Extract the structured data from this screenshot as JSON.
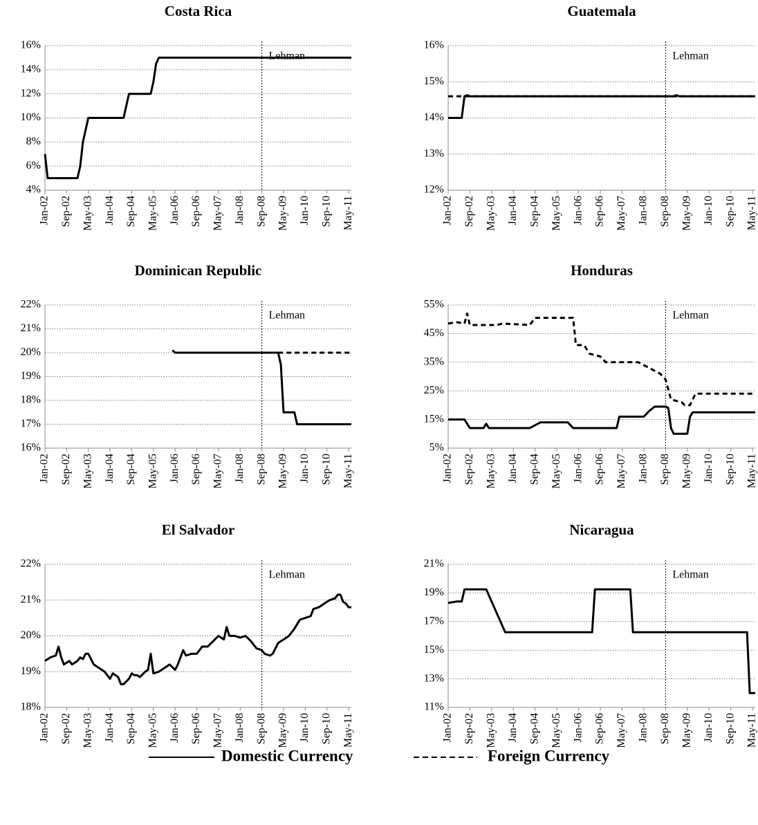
{
  "chart_data": [
    {
      "type": "line",
      "title": "Costa Rica",
      "xlim": [
        0,
        113
      ],
      "xticks": [
        {
          "value": 0,
          "label": "Jan-02"
        },
        {
          "value": 8,
          "label": "Sep-02"
        },
        {
          "value": 16,
          "label": "May-03"
        },
        {
          "value": 24,
          "label": "Jan-04"
        },
        {
          "value": 32,
          "label": "Sep-04"
        },
        {
          "value": 40,
          "label": "May-05"
        },
        {
          "value": 48,
          "label": "Jan-06"
        },
        {
          "value": 56,
          "label": "Sep-06"
        },
        {
          "value": 64,
          "label": "May-07"
        },
        {
          "value": 72,
          "label": "Jan-08"
        },
        {
          "value": 80,
          "label": "Sep-08"
        },
        {
          "value": 88,
          "label": "May-09"
        },
        {
          "value": 96,
          "label": "Jan-10"
        },
        {
          "value": 104,
          "label": "Sep-10"
        },
        {
          "value": 112,
          "label": "May-11"
        }
      ],
      "ylim": [
        4,
        16
      ],
      "yticks": [
        {
          "value": 4,
          "label": "4%"
        },
        {
          "value": 6,
          "label": "6%"
        },
        {
          "value": 8,
          "label": "8%"
        },
        {
          "value": 10,
          "label": "10%"
        },
        {
          "value": 12,
          "label": "12%"
        },
        {
          "value": 14,
          "label": "14%"
        },
        {
          "value": 16,
          "label": "16%"
        }
      ],
      "grid": true,
      "annotation": {
        "x": 80,
        "text": "Lehman"
      },
      "series": [
        {
          "name": "Domestic Currency",
          "style": "solid",
          "color": "#000000",
          "x": [
            0,
            1,
            12,
            13,
            14,
            15,
            16,
            29,
            30,
            31,
            39,
            40,
            41,
            42,
            113
          ],
          "values": [
            7,
            5,
            5,
            6,
            8,
            9,
            10,
            10,
            11,
            12,
            12,
            13,
            14.5,
            15,
            15
          ]
        }
      ]
    },
    {
      "type": "line",
      "title": "Guatemala",
      "xlim": [
        0,
        113
      ],
      "xticks": [
        {
          "value": 0,
          "label": "Jan-02"
        },
        {
          "value": 8,
          "label": "Sep-02"
        },
        {
          "value": 16,
          "label": "May-03"
        },
        {
          "value": 24,
          "label": "Jan-04"
        },
        {
          "value": 32,
          "label": "Sep-04"
        },
        {
          "value": 40,
          "label": "May-05"
        },
        {
          "value": 48,
          "label": "Jan-06"
        },
        {
          "value": 56,
          "label": "Sep-06"
        },
        {
          "value": 64,
          "label": "May-07"
        },
        {
          "value": 72,
          "label": "Jan-08"
        },
        {
          "value": 80,
          "label": "Sep-08"
        },
        {
          "value": 88,
          "label": "May-09"
        },
        {
          "value": 96,
          "label": "Jan-10"
        },
        {
          "value": 104,
          "label": "Sep-10"
        },
        {
          "value": 112,
          "label": "May-11"
        }
      ],
      "ylim": [
        12,
        16
      ],
      "yticks": [
        {
          "value": 12,
          "label": "12%"
        },
        {
          "value": 13,
          "label": "13%"
        },
        {
          "value": 14,
          "label": "14%"
        },
        {
          "value": 15,
          "label": "15%"
        },
        {
          "value": 16,
          "label": "16%"
        }
      ],
      "grid": true,
      "annotation": {
        "x": 80,
        "text": "Lehman"
      },
      "series": [
        {
          "name": "Domestic Currency",
          "style": "solid",
          "color": "#000000",
          "x": [
            0,
            5,
            6,
            7,
            8,
            83,
            84,
            85,
            113
          ],
          "values": [
            14,
            14,
            14.6,
            14.63,
            14.6,
            14.6,
            14.63,
            14.6,
            14.6
          ]
        },
        {
          "name": "Foreign Currency",
          "style": "dashed",
          "color": "#000000",
          "x": [
            0,
            113
          ],
          "values": [
            14.6,
            14.6
          ]
        }
      ]
    },
    {
      "type": "line",
      "title": "Dominican Republic",
      "xlim": [
        0,
        113
      ],
      "xticks": [
        {
          "value": 0,
          "label": "Jan-02"
        },
        {
          "value": 8,
          "label": "Sep-02"
        },
        {
          "value": 16,
          "label": "May-03"
        },
        {
          "value": 24,
          "label": "Jan-04"
        },
        {
          "value": 32,
          "label": "Sep-04"
        },
        {
          "value": 40,
          "label": "May-05"
        },
        {
          "value": 48,
          "label": "Jan-06"
        },
        {
          "value": 56,
          "label": "Sep-06"
        },
        {
          "value": 64,
          "label": "May-07"
        },
        {
          "value": 72,
          "label": "Jan-08"
        },
        {
          "value": 80,
          "label": "Sep-08"
        },
        {
          "value": 88,
          "label": "May-09"
        },
        {
          "value": 96,
          "label": "Jan-10"
        },
        {
          "value": 104,
          "label": "Sep-10"
        },
        {
          "value": 112,
          "label": "May-11"
        }
      ],
      "ylim": [
        16,
        22
      ],
      "yticks": [
        {
          "value": 16,
          "label": "16%"
        },
        {
          "value": 17,
          "label": "17%"
        },
        {
          "value": 18,
          "label": "18%"
        },
        {
          "value": 19,
          "label": "19%"
        },
        {
          "value": 20,
          "label": "20%"
        },
        {
          "value": 21,
          "label": "21%"
        },
        {
          "value": 22,
          "label": "22%"
        }
      ],
      "grid": true,
      "annotation": {
        "x": 80,
        "text": "Lehman"
      },
      "series": [
        {
          "name": "Domestic Currency",
          "style": "solid",
          "color": "#000000",
          "x": [
            47,
            48,
            86,
            87,
            88,
            92,
            93,
            113
          ],
          "values": [
            20.1,
            20,
            20,
            19.5,
            17.5,
            17.5,
            17,
            17
          ]
        },
        {
          "name": "Foreign Currency",
          "style": "dashed",
          "color": "#000000",
          "x": [
            86,
            113
          ],
          "values": [
            20,
            20
          ]
        }
      ]
    },
    {
      "type": "line",
      "title": "Honduras",
      "xlim": [
        0,
        113
      ],
      "xticks": [
        {
          "value": 0,
          "label": "Jan-02"
        },
        {
          "value": 8,
          "label": "Sep-02"
        },
        {
          "value": 16,
          "label": "May-03"
        },
        {
          "value": 24,
          "label": "Jan-04"
        },
        {
          "value": 32,
          "label": "Sep-04"
        },
        {
          "value": 40,
          "label": "May-05"
        },
        {
          "value": 48,
          "label": "Jan-06"
        },
        {
          "value": 56,
          "label": "Sep-06"
        },
        {
          "value": 64,
          "label": "May-07"
        },
        {
          "value": 72,
          "label": "Jan-08"
        },
        {
          "value": 80,
          "label": "Sep-08"
        },
        {
          "value": 88,
          "label": "May-09"
        },
        {
          "value": 96,
          "label": "Jan-10"
        },
        {
          "value": 104,
          "label": "Sep-10"
        },
        {
          "value": 112,
          "label": "May-11"
        }
      ],
      "ylim": [
        5,
        55
      ],
      "yticks": [
        {
          "value": 5,
          "label": "5%"
        },
        {
          "value": 15,
          "label": "15%"
        },
        {
          "value": 25,
          "label": "25%"
        },
        {
          "value": 35,
          "label": "35%"
        },
        {
          "value": 45,
          "label": "45%"
        },
        {
          "value": 55,
          "label": "55%"
        }
      ],
      "grid": true,
      "annotation": {
        "x": 80,
        "text": "Lehman"
      },
      "series": [
        {
          "name": "Domestic Currency",
          "style": "solid",
          "color": "#000000",
          "x": [
            0,
            6,
            8,
            13,
            14,
            15,
            30,
            32,
            34,
            44,
            46,
            62,
            63,
            72,
            74,
            76,
            80,
            81,
            82,
            83,
            88,
            89,
            90,
            113
          ],
          "values": [
            15,
            15,
            12,
            12,
            13.5,
            12,
            12,
            13,
            14,
            14,
            12,
            12,
            16,
            16,
            18,
            19.5,
            19.5,
            19,
            12,
            10,
            10,
            16,
            17.5,
            17.5
          ]
        },
        {
          "name": "Foreign Currency",
          "style": "dashed",
          "color": "#000000",
          "x": [
            0,
            3,
            6,
            7,
            8,
            18,
            20,
            30,
            32,
            46,
            47,
            50,
            52,
            56,
            58,
            70,
            74,
            78,
            80,
            82,
            86,
            87,
            89,
            91,
            113
          ],
          "values": [
            48.5,
            49,
            48.5,
            52,
            48,
            48,
            48.5,
            48,
            50.5,
            50.5,
            41,
            41,
            38,
            37,
            35,
            35,
            33,
            31,
            29,
            22,
            21,
            20,
            20,
            24,
            24
          ]
        }
      ]
    },
    {
      "type": "line",
      "title": "El Salvador",
      "xlim": [
        0,
        113
      ],
      "xticks": [
        {
          "value": 0,
          "label": "Jan-02"
        },
        {
          "value": 8,
          "label": "Sep-02"
        },
        {
          "value": 16,
          "label": "May-03"
        },
        {
          "value": 24,
          "label": "Jan-04"
        },
        {
          "value": 32,
          "label": "Sep-04"
        },
        {
          "value": 40,
          "label": "May-05"
        },
        {
          "value": 48,
          "label": "Jan-06"
        },
        {
          "value": 56,
          "label": "Sep-06"
        },
        {
          "value": 64,
          "label": "May-07"
        },
        {
          "value": 72,
          "label": "Jan-08"
        },
        {
          "value": 80,
          "label": "Sep-08"
        },
        {
          "value": 88,
          "label": "May-09"
        },
        {
          "value": 96,
          "label": "Jan-10"
        },
        {
          "value": 104,
          "label": "Sep-10"
        },
        {
          "value": 112,
          "label": "May-11"
        }
      ],
      "ylim": [
        18,
        22
      ],
      "yticks": [
        {
          "value": 18,
          "label": "18%"
        },
        {
          "value": 19,
          "label": "19%"
        },
        {
          "value": 20,
          "label": "20%"
        },
        {
          "value": 21,
          "label": "21%"
        },
        {
          "value": 22,
          "label": "22%"
        }
      ],
      "grid": true,
      "annotation": {
        "x": 80,
        "text": "Lehman"
      },
      "series": [
        {
          "name": "Domestic Currency",
          "style": "solid",
          "color": "#000000",
          "x": [
            0,
            2,
            4,
            5,
            6,
            7,
            9,
            10,
            12,
            13,
            14,
            15,
            16,
            18,
            20,
            22,
            24,
            25,
            27,
            28,
            29,
            31,
            32,
            33,
            34,
            35,
            37,
            38,
            39,
            40,
            42,
            44,
            46,
            48,
            49,
            51,
            52,
            54,
            56,
            58,
            60,
            62,
            64,
            66,
            67,
            68,
            70,
            72,
            74,
            76,
            78,
            80,
            81,
            83,
            84,
            86,
            88,
            90,
            92,
            94,
            96,
            98,
            99,
            101,
            103,
            105,
            107,
            108,
            109,
            110,
            111,
            112,
            113
          ],
          "values": [
            19.3,
            19.4,
            19.45,
            19.7,
            19.4,
            19.2,
            19.3,
            19.2,
            19.3,
            19.4,
            19.35,
            19.5,
            19.5,
            19.2,
            19.1,
            19.0,
            18.8,
            18.95,
            18.85,
            18.65,
            18.65,
            18.8,
            18.95,
            18.9,
            18.9,
            18.85,
            19.0,
            19.05,
            19.5,
            18.95,
            19.0,
            19.1,
            19.2,
            19.05,
            19.2,
            19.6,
            19.45,
            19.5,
            19.5,
            19.7,
            19.7,
            19.85,
            20.0,
            19.9,
            20.25,
            20.0,
            20.0,
            19.95,
            20.0,
            19.85,
            19.65,
            19.6,
            19.5,
            19.45,
            19.5,
            19.8,
            19.9,
            20.0,
            20.2,
            20.45,
            20.5,
            20.55,
            20.75,
            20.8,
            20.9,
            21.0,
            21.05,
            21.15,
            21.15,
            20.95,
            20.9,
            20.8,
            20.8
          ]
        }
      ]
    },
    {
      "type": "line",
      "title": "Nicaragua",
      "xlim": [
        0,
        113
      ],
      "xticks": [
        {
          "value": 0,
          "label": "Jan-02"
        },
        {
          "value": 8,
          "label": "Sep-02"
        },
        {
          "value": 16,
          "label": "May-03"
        },
        {
          "value": 24,
          "label": "Jan-04"
        },
        {
          "value": 32,
          "label": "Sep-04"
        },
        {
          "value": 40,
          "label": "May-05"
        },
        {
          "value": 48,
          "label": "Jan-06"
        },
        {
          "value": 56,
          "label": "Sep-06"
        },
        {
          "value": 64,
          "label": "May-07"
        },
        {
          "value": 72,
          "label": "Jan-08"
        },
        {
          "value": 80,
          "label": "Sep-08"
        },
        {
          "value": 88,
          "label": "May-09"
        },
        {
          "value": 96,
          "label": "Jan-10"
        },
        {
          "value": 104,
          "label": "Sep-10"
        },
        {
          "value": 112,
          "label": "May-11"
        }
      ],
      "ylim": [
        11,
        21
      ],
      "yticks": [
        {
          "value": 11,
          "label": "11%"
        },
        {
          "value": 13,
          "label": "13%"
        },
        {
          "value": 15,
          "label": "15%"
        },
        {
          "value": 17,
          "label": "17%"
        },
        {
          "value": 19,
          "label": "19%"
        },
        {
          "value": 21,
          "label": "21%"
        }
      ],
      "grid": true,
      "annotation": {
        "x": 80,
        "text": "Lehman"
      },
      "series": [
        {
          "name": "Domestic Currency",
          "style": "solid",
          "color": "#000000",
          "x": [
            0,
            3,
            5,
            6,
            14,
            21,
            53,
            54,
            67,
            68,
            110,
            111,
            113
          ],
          "values": [
            18.3,
            18.4,
            18.4,
            19.25,
            19.25,
            16.25,
            16.25,
            19.25,
            19.25,
            16.25,
            16.25,
            12,
            12
          ]
        }
      ]
    }
  ]
}
